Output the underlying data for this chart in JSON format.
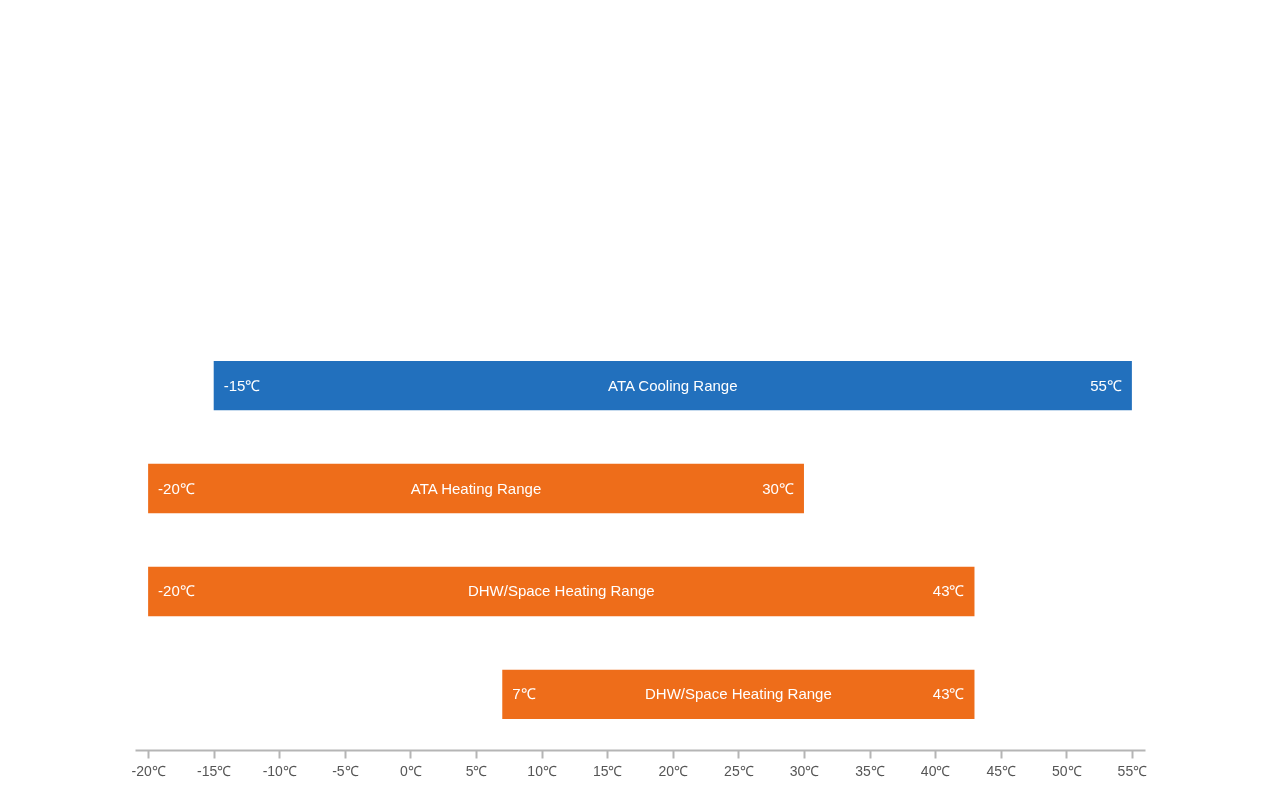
{
  "chart_data": {
    "type": "bar",
    "orientation": "horizontal",
    "categories": [
      "ATA Cooling Range",
      "ATA Heating Range",
      "DHW/Space Heating Range",
      "DHW/Space Heating Range"
    ],
    "base": [
      -15,
      -20,
      -20,
      7
    ],
    "values": [
      70,
      50,
      63,
      36
    ],
    "colors": [
      "#2270bd",
      "#ee6d1a",
      "#ee6d1a",
      "#ee6d1a"
    ],
    "value_labels": [
      "55℃",
      "30℃",
      "43℃",
      "43℃"
    ],
    "annotations": [
      "-15℃",
      "-20℃",
      "-20℃",
      "7℃"
    ],
    "xlim": [
      -21,
      56
    ],
    "xticks": [
      {
        "value": -20,
        "label": "-20℃"
      },
      {
        "value": -15,
        "label": "-15℃"
      },
      {
        "value": -10,
        "label": "-10℃"
      },
      {
        "value": -5,
        "label": "-5℃"
      },
      {
        "value": 0,
        "label": "0℃"
      },
      {
        "value": 5,
        "label": "5℃"
      },
      {
        "value": 10,
        "label": "10℃"
      },
      {
        "value": 15,
        "label": "15℃"
      },
      {
        "value": 20,
        "label": "20℃"
      },
      {
        "value": 25,
        "label": "25℃"
      },
      {
        "value": 30,
        "label": "30℃"
      },
      {
        "value": 35,
        "label": "35℃"
      },
      {
        "value": 40,
        "label": "40℃"
      },
      {
        "value": 45,
        "label": "45℃"
      },
      {
        "value": 50,
        "label": "50℃"
      },
      {
        "value": 55,
        "label": "55℃"
      }
    ],
    "grid": false
  }
}
